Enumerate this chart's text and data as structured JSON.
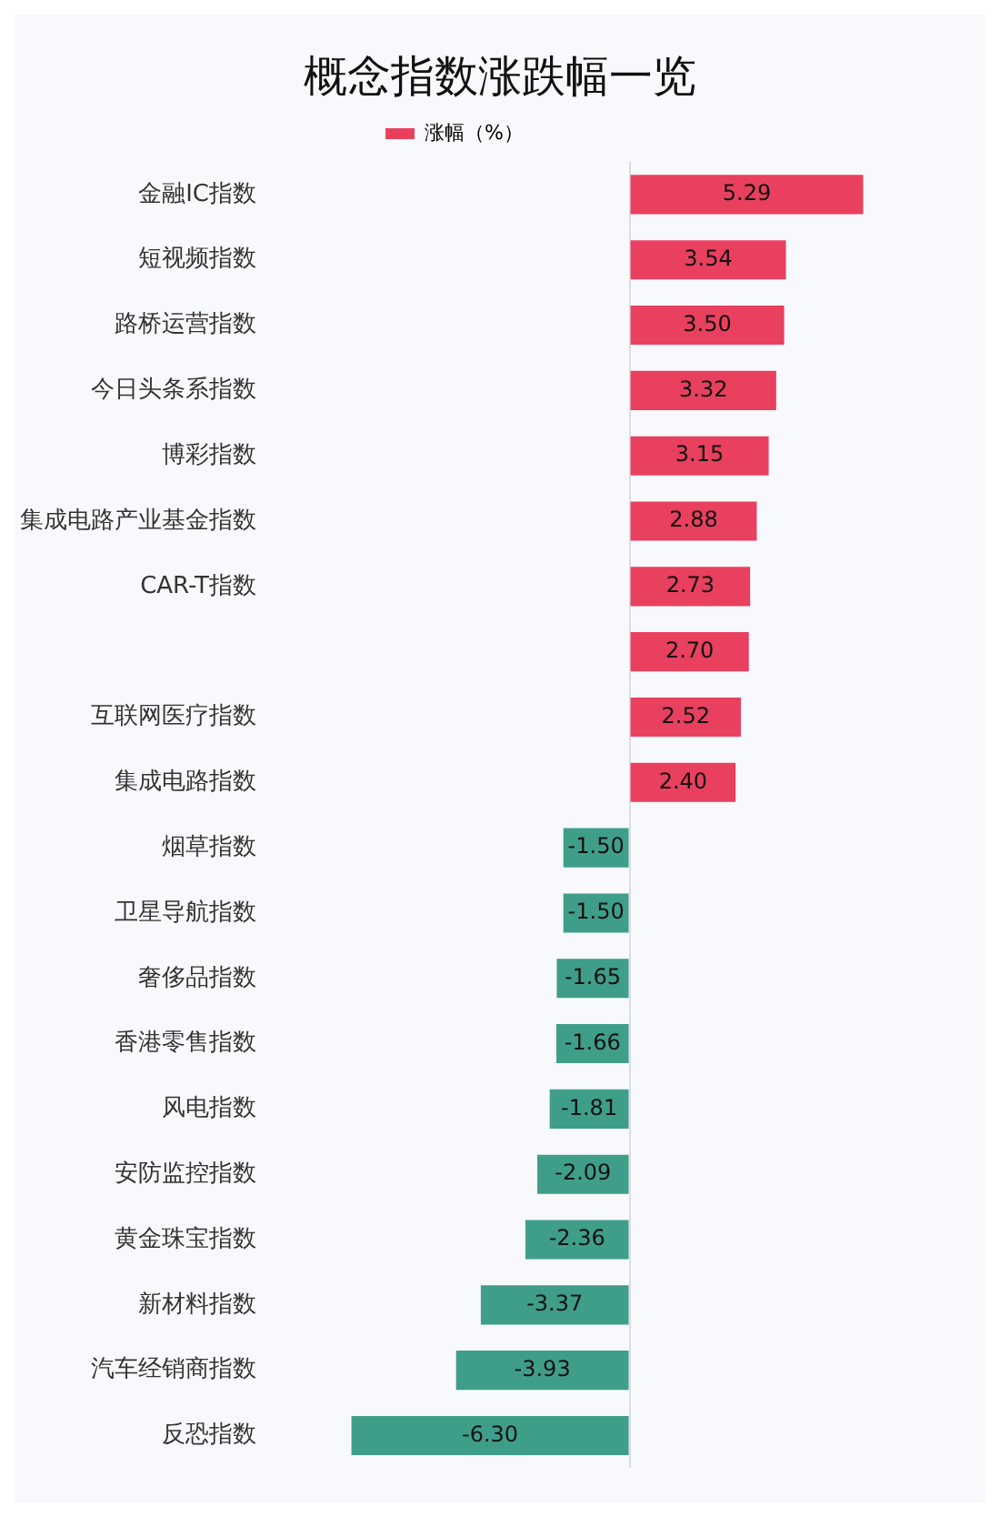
{
  "chart_data": {
    "type": "bar",
    "orientation": "horizontal",
    "title": "概念指数涨跌幅一览",
    "categories": [
      "金融IC指数",
      "短视频指数",
      "路桥运营指数",
      "今日头条系指数",
      "博彩指数",
      "集成电路产业基金指数",
      "CAR-T指数",
      null,
      "互联网医疗指数",
      "集成电路指数",
      "烟草指数",
      "卫星导航指数",
      "奢侈品指数",
      "香港零售指数",
      "风电指数",
      "安防监控指数",
      "黄金珠宝指数",
      "新材料指数",
      "汽车经销商指数",
      "反恐指数"
    ],
    "series": [
      {
        "name": "涨幅（%）",
        "color": "#e8405e",
        "values": [
          5.29,
          3.54,
          3.5,
          3.32,
          3.15,
          2.88,
          2.73,
          2.7,
          2.52,
          2.4,
          -1.5,
          -1.5,
          -1.65,
          -1.66,
          -1.81,
          -2.09,
          -2.36,
          -3.37,
          -3.93,
          -6.3
        ],
        "value_labels": [
          "5.29",
          "3.54",
          "3.50",
          "3.32",
          "3.15",
          "2.88",
          "2.73",
          "2.70",
          "2.52",
          "2.40",
          "-1.50",
          "-1.50",
          "-1.65",
          "-1.66",
          "-1.81",
          "-2.09",
          "-2.36",
          "-3.37",
          "-3.93",
          "-6.30"
        ],
        "colors": [
          "#e8405e",
          "#e8405e",
          "#e8405e",
          "#e8405e",
          "#e8405e",
          "#e8405e",
          "#e8405e",
          "#e8405e",
          "#e8405e",
          "#e8405e",
          "#3f9e8a",
          "#3f9e8a",
          "#3f9e8a",
          "#3f9e8a",
          "#3f9e8a",
          "#3f9e8a",
          "#3f9e8a",
          "#3f9e8a",
          "#3f9e8a",
          "#3f9e8a"
        ]
      }
    ],
    "legend": "top",
    "tick_labels": "y",
    "grid": false
  }
}
